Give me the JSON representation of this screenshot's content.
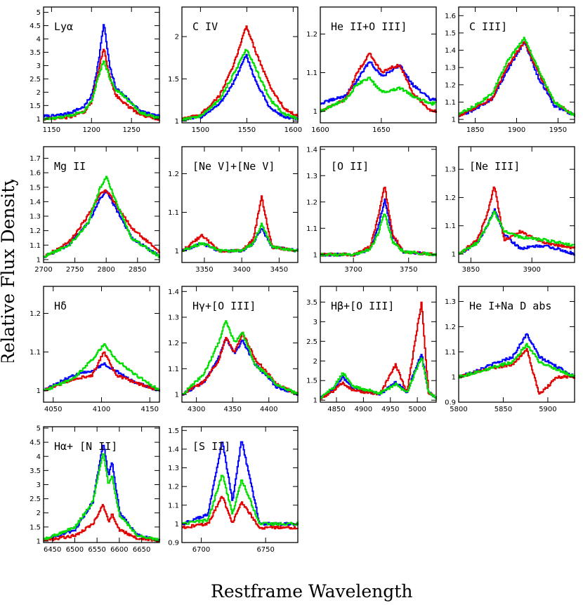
{
  "figure": {
    "ylabel": "Relative Flux Density",
    "xlabel": "Restframe Wavelength"
  },
  "series_colors": [
    "#0000ff",
    "#e00000",
    "#00dd00"
  ],
  "chart_data": [
    {
      "type": "line",
      "title": "Lyα",
      "xlim": [
        1140,
        1285
      ],
      "ylim": [
        0.85,
        5.2
      ],
      "xticks": [
        1150,
        1200,
        1250
      ],
      "yticks": [
        1,
        1.5,
        2,
        2.5,
        3,
        3.5,
        4,
        4.5,
        5
      ],
      "center": 1215,
      "baseline": 1.0,
      "peaks": [
        4.6,
        3.65,
        3.2
      ],
      "x": [
        1150,
        1170,
        1190,
        1200,
        1208,
        1215,
        1222,
        1230,
        1240,
        1260,
        1280
      ],
      "series": [
        {
          "values": [
            1.1,
            1.2,
            1.45,
            1.9,
            3.1,
            4.6,
            3.0,
            2.15,
            1.9,
            1.3,
            1.1
          ]
        },
        {
          "values": [
            1.0,
            1.05,
            1.25,
            1.65,
            2.8,
            3.65,
            2.6,
            1.9,
            1.6,
            1.15,
            1.0
          ]
        },
        {
          "values": [
            1.0,
            1.1,
            1.3,
            1.7,
            2.6,
            3.2,
            2.55,
            2.1,
            1.85,
            1.25,
            1.05
          ]
        }
      ]
    },
    {
      "type": "line",
      "title": "C IV",
      "xlim": [
        1480,
        1605
      ],
      "ylim": [
        0.98,
        2.35
      ],
      "xticks": [
        1500,
        1550,
        1600
      ],
      "yticks": [
        1,
        1.5,
        2
      ],
      "center": 1549,
      "baseline": 1.0,
      "peaks": [
        1.78,
        2.13,
        1.85
      ],
      "x": [
        1480,
        1500,
        1520,
        1535,
        1549,
        1560,
        1575,
        1590,
        1605
      ],
      "series": [
        {
          "values": [
            1.02,
            1.05,
            1.2,
            1.45,
            1.78,
            1.45,
            1.15,
            1.05,
            1.02
          ]
        },
        {
          "values": [
            1.02,
            1.08,
            1.3,
            1.65,
            2.13,
            1.8,
            1.4,
            1.15,
            1.05
          ]
        },
        {
          "values": [
            1.02,
            1.06,
            1.25,
            1.55,
            1.85,
            1.6,
            1.25,
            1.08,
            1.03
          ]
        }
      ]
    },
    {
      "type": "line",
      "title": "He II+O III]",
      "xlim": [
        1600,
        1695
      ],
      "ylim": [
        0.97,
        1.27
      ],
      "xticks": [
        1600,
        1650
      ],
      "yticks": [
        1,
        1.1,
        1.2
      ],
      "center": 1640,
      "baseline": 1.0,
      "peaks": [
        1.13,
        1.15,
        1.085
      ],
      "x": [
        1600,
        1620,
        1630,
        1640,
        1650,
        1655,
        1665,
        1675,
        1690
      ],
      "series": [
        {
          "values": [
            1.02,
            1.04,
            1.08,
            1.13,
            1.09,
            1.1,
            1.12,
            1.07,
            1.03
          ]
        },
        {
          "values": [
            1.0,
            1.03,
            1.1,
            1.15,
            1.1,
            1.11,
            1.12,
            1.05,
            1.0
          ]
        },
        {
          "values": [
            1.0,
            1.03,
            1.07,
            1.085,
            1.05,
            1.05,
            1.06,
            1.04,
            1.02
          ]
        }
      ]
    },
    {
      "type": "line",
      "title": "C III]",
      "xlim": [
        1830,
        1970
      ],
      "ylim": [
        0.98,
        1.65
      ],
      "xticks": [
        1850,
        1900,
        1950
      ],
      "yticks": [
        1,
        1.1,
        1.2,
        1.3,
        1.4,
        1.5,
        1.6
      ],
      "center": 1909,
      "baseline": 1.0,
      "peaks": [
        1.45,
        1.45,
        1.47
      ],
      "x": [
        1830,
        1850,
        1870,
        1890,
        1909,
        1925,
        1945,
        1970
      ],
      "series": [
        {
          "values": [
            1.02,
            1.06,
            1.12,
            1.3,
            1.45,
            1.25,
            1.08,
            1.02
          ]
        },
        {
          "values": [
            1.02,
            1.07,
            1.12,
            1.32,
            1.45,
            1.28,
            1.1,
            1.02
          ]
        },
        {
          "values": [
            1.03,
            1.08,
            1.15,
            1.35,
            1.47,
            1.3,
            1.1,
            1.02
          ]
        }
      ]
    },
    {
      "type": "line",
      "title": "Mg II",
      "xlim": [
        2700,
        2885
      ],
      "ylim": [
        0.98,
        1.78
      ],
      "xticks": [
        2700,
        2750,
        2800,
        2850
      ],
      "yticks": [
        1,
        1.1,
        1.2,
        1.3,
        1.4,
        1.5,
        1.6,
        1.7
      ],
      "center": 2800,
      "baseline": 1.0,
      "peaks": [
        1.48,
        1.48,
        1.57
      ],
      "x": [
        2700,
        2740,
        2770,
        2790,
        2800,
        2815,
        2840,
        2885
      ],
      "series": [
        {
          "values": [
            1.02,
            1.1,
            1.25,
            1.42,
            1.48,
            1.35,
            1.15,
            1.02
          ]
        },
        {
          "values": [
            1.02,
            1.12,
            1.3,
            1.45,
            1.48,
            1.38,
            1.22,
            1.05
          ]
        },
        {
          "values": [
            1.02,
            1.1,
            1.25,
            1.5,
            1.57,
            1.4,
            1.15,
            1.02
          ]
        }
      ]
    },
    {
      "type": "line",
      "title": "[Ne V]+[Ne V]",
      "xlim": [
        3320,
        3475
      ],
      "ylim": [
        0.97,
        1.27
      ],
      "xticks": [
        3350,
        3400,
        3450
      ],
      "yticks": [
        1,
        1.1,
        1.2
      ],
      "center": 3426,
      "baseline": 1.0,
      "peaks": [
        1.06,
        1.14,
        1.07
      ],
      "x": [
        3320,
        3346,
        3370,
        3400,
        3415,
        3426,
        3440,
        3475
      ],
      "series": [
        {
          "values": [
            1.0,
            1.02,
            1.0,
            1.0,
            1.02,
            1.06,
            1.01,
            1.0
          ]
        },
        {
          "values": [
            1.0,
            1.04,
            1.0,
            1.0,
            1.03,
            1.14,
            1.01,
            1.0
          ]
        },
        {
          "values": [
            1.0,
            1.02,
            1.0,
            1.0,
            1.02,
            1.07,
            1.01,
            1.0
          ]
        }
      ]
    },
    {
      "type": "line",
      "title": "[O II]",
      "xlim": [
        3670,
        3775
      ],
      "ylim": [
        0.97,
        1.41
      ],
      "xticks": [
        3700,
        3750
      ],
      "yticks": [
        1,
        1.1,
        1.2,
        1.3,
        1.4
      ],
      "center": 3728,
      "baseline": 1.0,
      "peaks": [
        1.21,
        1.26,
        1.16
      ],
      "x": [
        3670,
        3700,
        3715,
        3722,
        3728,
        3735,
        3745,
        3775
      ],
      "series": [
        {
          "values": [
            1.0,
            1.0,
            1.02,
            1.1,
            1.21,
            1.07,
            1.01,
            1.0
          ]
        },
        {
          "values": [
            1.0,
            1.0,
            1.03,
            1.14,
            1.26,
            1.08,
            1.01,
            1.0
          ]
        },
        {
          "values": [
            1.0,
            1.0,
            1.02,
            1.08,
            1.16,
            1.05,
            1.01,
            1.0
          ]
        }
      ]
    },
    {
      "type": "line",
      "title": "[Ne III]",
      "xlim": [
        3840,
        3935
      ],
      "ylim": [
        0.97,
        1.38
      ],
      "xticks": [
        3850,
        3900
      ],
      "yticks": [
        1,
        1.1,
        1.2,
        1.3
      ],
      "center": 3869,
      "baseline": 1.0,
      "peaks": [
        1.16,
        1.24,
        1.15
      ],
      "x": [
        3840,
        3855,
        3863,
        3869,
        3877,
        3890,
        3910,
        3935
      ],
      "series": [
        {
          "values": [
            1.0,
            1.04,
            1.1,
            1.16,
            1.07,
            1.02,
            1.03,
            1.0
          ]
        },
        {
          "values": [
            1.0,
            1.05,
            1.14,
            1.24,
            1.05,
            1.08,
            1.04,
            1.02
          ]
        },
        {
          "values": [
            1.0,
            1.04,
            1.1,
            1.15,
            1.08,
            1.06,
            1.05,
            1.03
          ]
        }
      ]
    },
    {
      "type": "line",
      "title": "Hδ",
      "xlim": [
        4040,
        4160
      ],
      "ylim": [
        0.97,
        1.27
      ],
      "xticks": [
        4050,
        4100,
        4150
      ],
      "yticks": [
        1,
        1.1,
        1.2
      ],
      "center": 4102,
      "baseline": 1.0,
      "peaks": [
        1.07,
        1.1,
        1.12
      ],
      "x": [
        4040,
        4070,
        4090,
        4102,
        4115,
        4135,
        4160
      ],
      "series": [
        {
          "values": [
            1.0,
            1.04,
            1.05,
            1.07,
            1.05,
            1.02,
            1.0
          ]
        },
        {
          "values": [
            1.0,
            1.03,
            1.04,
            1.1,
            1.04,
            1.02,
            1.0
          ]
        },
        {
          "values": [
            1.0,
            1.03,
            1.08,
            1.12,
            1.08,
            1.04,
            1.0
          ]
        }
      ]
    },
    {
      "type": "line",
      "title": "Hγ+[O III]",
      "xlim": [
        4280,
        4440
      ],
      "ylim": [
        0.97,
        1.42
      ],
      "xticks": [
        4300,
        4350,
        4400
      ],
      "yticks": [
        1,
        1.1,
        1.2,
        1.3,
        1.4
      ],
      "center": 4340,
      "baseline": 1.0,
      "peaks": [
        1.22,
        1.22,
        1.29
      ],
      "x": [
        4280,
        4310,
        4330,
        4340,
        4352,
        4363,
        4380,
        4410,
        4440
      ],
      "series": [
        {
          "values": [
            1.0,
            1.05,
            1.14,
            1.22,
            1.16,
            1.21,
            1.12,
            1.03,
            1.0
          ]
        },
        {
          "values": [
            1.0,
            1.05,
            1.13,
            1.22,
            1.16,
            1.24,
            1.14,
            1.04,
            1.0
          ]
        },
        {
          "values": [
            1.0,
            1.08,
            1.2,
            1.29,
            1.2,
            1.24,
            1.12,
            1.04,
            1.0
          ]
        }
      ]
    },
    {
      "type": "line",
      "title": "Hβ+[O III]",
      "xlim": [
        4820,
        5035
      ],
      "ylim": [
        0.95,
        3.9
      ],
      "xticks": [
        4850,
        4900,
        4950,
        5000
      ],
      "yticks": [
        1,
        1.5,
        2,
        2.5,
        3,
        3.5
      ],
      "center": 4861,
      "baseline": 1.0,
      "peaks": [
        1.6,
        1.45,
        1.7
      ],
      "x": [
        4820,
        4845,
        4861,
        4880,
        4930,
        4959,
        4980,
        5007,
        5020,
        5035
      ],
      "series": [
        {
          "values": [
            1.05,
            1.3,
            1.6,
            1.3,
            1.15,
            1.45,
            1.2,
            2.2,
            1.2,
            1.05
          ]
        },
        {
          "values": [
            1.05,
            1.25,
            1.45,
            1.25,
            1.15,
            1.9,
            1.2,
            3.5,
            1.2,
            1.05
          ]
        },
        {
          "values": [
            1.05,
            1.35,
            1.7,
            1.35,
            1.18,
            1.4,
            1.2,
            2.1,
            1.2,
            1.05
          ]
        }
      ]
    },
    {
      "type": "line",
      "title": "He I+Na D abs",
      "xlim": [
        5800,
        5930
      ],
      "ylim": [
        0.9,
        1.36
      ],
      "xticks": [
        5800,
        5850,
        5900
      ],
      "yticks": [
        0.9,
        1,
        1.1,
        1.2,
        1.3
      ],
      "center": 5876,
      "baseline": 1.0,
      "peaks": [
        1.17,
        1.11,
        1.13
      ],
      "x": [
        5800,
        5830,
        5860,
        5876,
        5890,
        5910,
        5930
      ],
      "series": [
        {
          "values": [
            1.0,
            1.04,
            1.08,
            1.17,
            1.08,
            1.04,
            1.0
          ]
        },
        {
          "values": [
            1.0,
            1.03,
            1.05,
            1.11,
            0.93,
            1.0,
            1.0
          ]
        },
        {
          "values": [
            1.0,
            1.03,
            1.06,
            1.13,
            1.06,
            1.03,
            1.0
          ]
        }
      ]
    },
    {
      "type": "line",
      "title": "Hα+ [N II]",
      "xlim": [
        6430,
        6690
      ],
      "ylim": [
        0.95,
        5.05
      ],
      "xticks": [
        6450,
        6500,
        6550,
        6600,
        6650
      ],
      "yticks": [
        1,
        1.5,
        2,
        2.5,
        3,
        3.5,
        4,
        4.5,
        5
      ],
      "center": 6563,
      "baseline": 1.0,
      "peaks": [
        4.5,
        2.3,
        4.2
      ],
      "x": [
        6430,
        6500,
        6540,
        6563,
        6575,
        6583,
        6600,
        6640,
        6690
      ],
      "series": [
        {
          "values": [
            1.05,
            1.4,
            2.4,
            4.5,
            3.3,
            3.8,
            2.0,
            1.2,
            1.02
          ]
        },
        {
          "values": [
            1.02,
            1.2,
            1.6,
            2.3,
            1.7,
            1.95,
            1.4,
            1.1,
            1.02
          ]
        },
        {
          "values": [
            1.05,
            1.5,
            2.4,
            4.2,
            3.0,
            3.3,
            1.9,
            1.2,
            1.02
          ]
        }
      ]
    },
    {
      "type": "line",
      "title": "[S II]",
      "xlim": [
        6685,
        6775
      ],
      "ylim": [
        0.9,
        1.52
      ],
      "xticks": [
        6700,
        6750
      ],
      "yticks": [
        0.9,
        1,
        1.1,
        1.2,
        1.3,
        1.4,
        1.5
      ],
      "center": 6716,
      "baseline": 1.0,
      "peaks": [
        1.45,
        1.15,
        1.27
      ],
      "x": [
        6685,
        6705,
        6716,
        6724,
        6731,
        6745,
        6775
      ],
      "series": [
        {
          "values": [
            1.0,
            1.05,
            1.45,
            1.12,
            1.45,
            1.0,
            1.0
          ]
        },
        {
          "values": [
            0.98,
            1.0,
            1.15,
            1.0,
            1.12,
            0.98,
            0.98
          ]
        },
        {
          "values": [
            1.0,
            1.02,
            1.27,
            1.05,
            1.24,
            1.0,
            1.0
          ]
        }
      ]
    }
  ]
}
